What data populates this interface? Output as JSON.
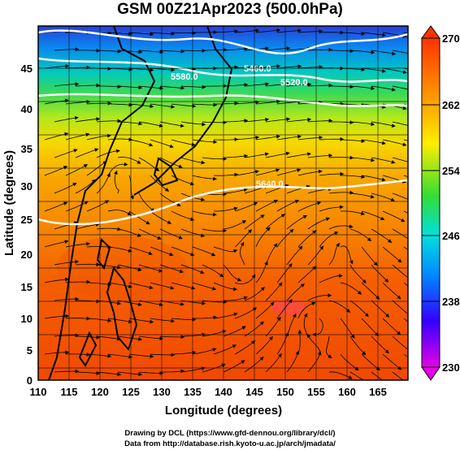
{
  "title": "GSM 00Z21Apr2023 (500.0hPa)",
  "credits": {
    "line1": "Drawing by DCL (https://www.gfd-dennou.org/library/dcl/)",
    "line2": "Data from http://database.rish.kyoto-u.ac.jp/arch/jmadata/"
  },
  "map": {
    "xlabel": "Longitude (degrees)",
    "ylabel": "Latitude  (degrees)",
    "lon_range": [
      110,
      170
    ],
    "lat_range": [
      0,
      50
    ],
    "lon_ticks": [
      "110",
      "115",
      "120",
      "125",
      "130",
      "135",
      "140",
      "145",
      "150",
      "155",
      "160",
      "165"
    ],
    "lat_ticks": [
      "0",
      "5",
      "10",
      "15",
      "20",
      "25",
      "30",
      "35",
      "40",
      "45"
    ],
    "contour_labels": [
      "5460.0",
      "5520.0",
      "5580.0",
      "5640.0"
    ]
  },
  "colorbar": {
    "labels": [
      "270",
      "262",
      "254",
      "246",
      "238",
      "230"
    ],
    "range": [
      230,
      270
    ],
    "colors": [
      "#e600e6",
      "#3300ff",
      "#0088ff",
      "#00e0e0",
      "#33dd33",
      "#ffee00",
      "#ff9900",
      "#ff3300"
    ]
  }
}
